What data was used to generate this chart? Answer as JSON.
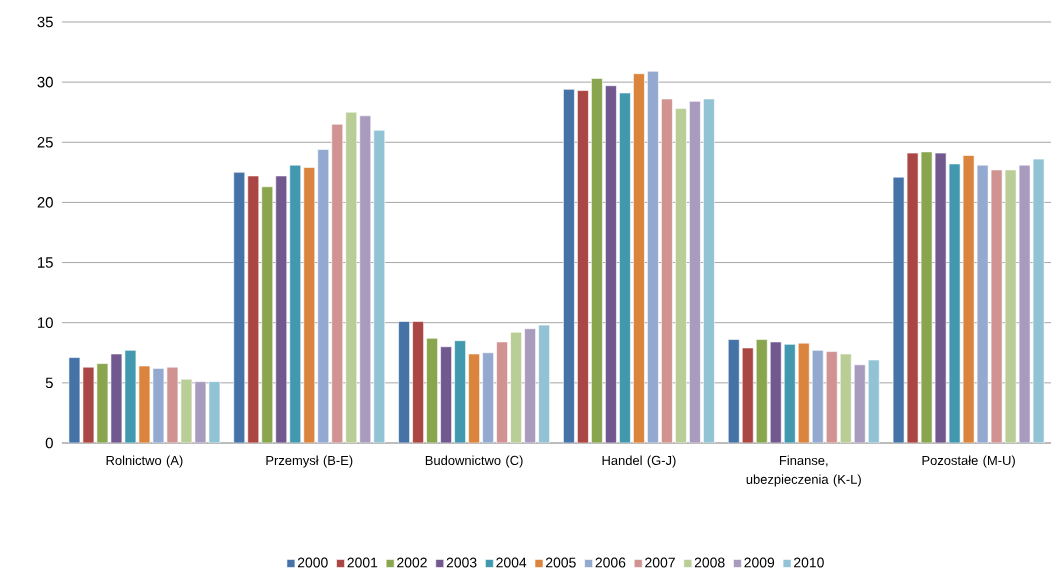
{
  "chart_data": {
    "type": "bar",
    "categories": [
      "Rolnictwo  (A)",
      "Przemysł  (B-E)",
      "Budownictwo (C)",
      "Handel (G-J)",
      "Finanse, ubezpieczenia (K-L)",
      "Pozostałe    (M-U)"
    ],
    "series": [
      {
        "name": "2000",
        "color": "#4572a7",
        "values": [
          7.1,
          22.5,
          10.1,
          29.4,
          8.6,
          22.1
        ]
      },
      {
        "name": "2001",
        "color": "#aa4643",
        "values": [
          6.3,
          22.2,
          10.1,
          29.3,
          7.9,
          24.1
        ]
      },
      {
        "name": "2002",
        "color": "#89a54e",
        "values": [
          6.6,
          21.3,
          8.7,
          30.3,
          8.6,
          24.2
        ]
      },
      {
        "name": "2003",
        "color": "#71588f",
        "values": [
          7.4,
          22.2,
          8.0,
          29.7,
          8.4,
          24.1
        ]
      },
      {
        "name": "2004",
        "color": "#4198af",
        "values": [
          7.7,
          23.1,
          8.5,
          29.1,
          8.2,
          23.2
        ]
      },
      {
        "name": "2005",
        "color": "#db843d",
        "values": [
          6.4,
          22.9,
          7.4,
          30.7,
          8.3,
          23.9
        ]
      },
      {
        "name": "2006",
        "color": "#93a9cf",
        "values": [
          6.2,
          24.4,
          7.5,
          30.9,
          7.7,
          23.1
        ]
      },
      {
        "name": "2007",
        "color": "#d19392",
        "values": [
          6.3,
          26.5,
          8.4,
          28.6,
          7.6,
          22.7
        ]
      },
      {
        "name": "2008",
        "color": "#b9cd96",
        "values": [
          5.3,
          27.5,
          9.2,
          27.8,
          7.4,
          22.7
        ]
      },
      {
        "name": "2009",
        "color": "#a99bbd",
        "values": [
          5.1,
          27.2,
          9.5,
          28.4,
          6.5,
          23.1
        ]
      },
      {
        "name": "2010",
        "color": "#92c3d5",
        "values": [
          5.1,
          26.0,
          9.8,
          28.6,
          6.9,
          23.6
        ]
      }
    ],
    "ylim": [
      0,
      35
    ],
    "yticks": [
      0,
      5,
      10,
      15,
      20,
      25,
      30,
      35
    ],
    "grid": "y",
    "legend": "bottom"
  }
}
